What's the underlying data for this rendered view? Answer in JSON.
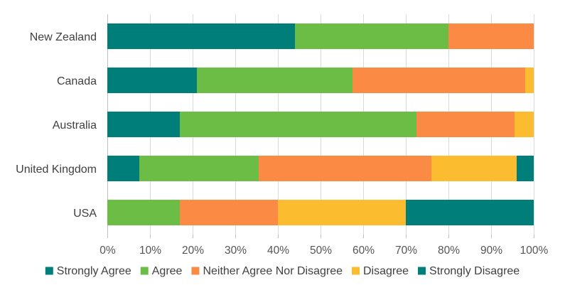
{
  "chart_data": {
    "type": "bar",
    "orientation": "horizontal",
    "stacked": "percent",
    "categories": [
      "New Zealand",
      "Canada",
      "Australia",
      "United Kingdom",
      "USA"
    ],
    "series": [
      {
        "name": "Strongly Agree",
        "color": "#007f7a",
        "values": [
          44,
          21,
          17,
          7.5,
          0
        ]
      },
      {
        "name": "Agree",
        "color": "#6bbd45",
        "values": [
          36,
          36.5,
          55.5,
          28,
          17
        ]
      },
      {
        "name": "Neither Agree Nor Disagree",
        "color": "#fb8a45",
        "values": [
          20,
          40.5,
          23,
          40.5,
          23
        ]
      },
      {
        "name": "Disagree",
        "color": "#fbbd2f",
        "values": [
          0,
          2,
          4.5,
          20,
          30
        ]
      },
      {
        "name": "Strongly Disagree",
        "color": "#007f7a",
        "values": [
          0,
          0,
          0,
          4,
          30
        ]
      }
    ],
    "xlim": [
      0,
      100
    ],
    "xticks": [
      "0%",
      "10%",
      "20%",
      "30%",
      "40%",
      "50%",
      "60%",
      "70%",
      "80%",
      "90%",
      "100%"
    ],
    "grid": "vertical",
    "legend": "bottom",
    "title": "",
    "xlabel": "",
    "ylabel": ""
  }
}
